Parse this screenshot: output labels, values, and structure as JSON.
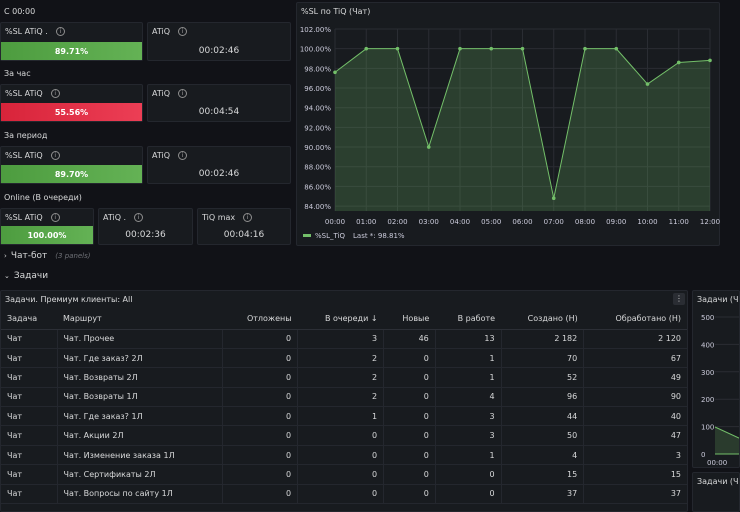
{
  "top_label": "С 00:00",
  "hour_label": "За час",
  "period_label": "За период",
  "online_label": "Online (В очереди)",
  "stats": {
    "s1_sl_title": "%SL ATiQ .",
    "s1_sl_value": "89.71%",
    "s1_atiq_title": "ATiQ",
    "s1_atiq_value": "00:02:46",
    "s2_sl_title": "%SL ATiQ",
    "s2_sl_value": "55.56%",
    "s2_atiq_title": "ATiQ",
    "s2_atiq_value": "00:04:54",
    "s3_sl_title": "%SL ATiQ",
    "s3_sl_value": "89.70%",
    "s3_atiq_title": "ATiQ",
    "s3_atiq_value": "00:02:46",
    "s4_sl_title": "%SL ATiQ",
    "s4_sl_value": "100.00%",
    "s4_atiq_title": "ATiQ .",
    "s4_atiq_value": "00:02:36",
    "s4_max_title": "TiQ max",
    "s4_max_value": "00:04:16"
  },
  "colors": {
    "green": "#5aa64b",
    "red": "#e02f44",
    "line": "#73bf69"
  },
  "chart_data": {
    "type": "area",
    "title": "%SL по TiQ (Чат)",
    "x": [
      "00:00",
      "01:00",
      "02:00",
      "03:00",
      "04:00",
      "05:00",
      "06:00",
      "07:00",
      "08:00",
      "09:00",
      "10:00",
      "11:00",
      "12:00"
    ],
    "series": [
      {
        "name": "%SL_TiQ",
        "values": [
          97.6,
          100,
          100,
          90,
          100,
          100,
          100,
          84.8,
          100,
          100,
          96.4,
          98.6,
          98.81
        ]
      }
    ],
    "y_ticks": [
      "102.00%",
      "100.00%",
      "98.00%",
      "96.00%",
      "94.00%",
      "92.00%",
      "90.00%",
      "88.00%",
      "86.00%",
      "84.00%"
    ],
    "ylim": [
      83.5,
      102
    ],
    "legend_label": "%SL_TiQ",
    "legend_last": "Last *: 98.81%",
    "grid": true,
    "legend": "bottom-left"
  },
  "chatbot_row": {
    "title": "Чат-бот",
    "sub": "(3 panels)"
  },
  "tasks_row": {
    "title": "Задачи"
  },
  "table": {
    "title": "Задачи. Премиум клиенты: All",
    "headers": [
      "Задача",
      "Маршрут",
      "Отложены",
      "В очереди ↓",
      "Новые",
      "В работе",
      "Создано (Н)",
      "Обработано (Н)"
    ],
    "rows": [
      [
        "Чат",
        "Чат. Прочее",
        "0",
        "3",
        "46",
        "13",
        "2 182",
        "2 120"
      ],
      [
        "Чат",
        "Чат. Где заказ? 2Л",
        "0",
        "2",
        "0",
        "1",
        "70",
        "67"
      ],
      [
        "Чат",
        "Чат. Возвраты 2Л",
        "0",
        "2",
        "0",
        "1",
        "52",
        "49"
      ],
      [
        "Чат",
        "Чат. Возвраты 1Л",
        "0",
        "2",
        "0",
        "4",
        "96",
        "90"
      ],
      [
        "Чат",
        "Чат. Где заказ? 1Л",
        "0",
        "1",
        "0",
        "3",
        "44",
        "40"
      ],
      [
        "Чат",
        "Чат. Акции 2Л",
        "0",
        "0",
        "0",
        "3",
        "50",
        "47"
      ],
      [
        "Чат",
        "Чат. Изменение заказа 1Л",
        "0",
        "0",
        "0",
        "1",
        "4",
        "3"
      ],
      [
        "Чат",
        "Чат. Сертификаты 2Л",
        "0",
        "0",
        "0",
        "0",
        "15",
        "15"
      ],
      [
        "Чат",
        "Чат. Вопросы по сайту 1Л",
        "0",
        "0",
        "0",
        "0",
        "37",
        "37"
      ]
    ]
  },
  "right_panel": {
    "title": "Задачи (Ча",
    "ticks": [
      "500",
      "400",
      "300",
      "200",
      "100",
      "0"
    ],
    "x_tick": "00:00",
    "title2": "Задачи (Ча"
  }
}
